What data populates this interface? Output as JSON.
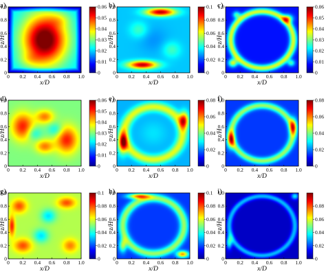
{
  "figure": {
    "colormap": [
      "#00008f",
      "#0000ff",
      "#0080ff",
      "#00ffff",
      "#80ff80",
      "#ffff00",
      "#ff8000",
      "#ff0000",
      "#800000"
    ]
  },
  "chart_data": [
    {
      "type": "heatmap",
      "panel": "a)",
      "xlabel": "x/D",
      "ylabel": "z/H",
      "xlim": [
        0,
        1
      ],
      "ylim": [
        0,
        1
      ],
      "x_ticks": [
        "0",
        "0.2",
        "0.4",
        "0.6",
        "0.8",
        "1.0"
      ],
      "y_ticks": [
        "0",
        "0.2",
        "0.4",
        "0.6",
        "0.8",
        "1.0"
      ],
      "colorbar": {
        "min": 0,
        "max": 0.06,
        "ticks": [
          "0",
          "0.01",
          "0.02",
          "0.03",
          "0.04",
          "0.05",
          "0.06"
        ]
      },
      "pattern": "center-high",
      "base_level": 0.35,
      "blobs": [
        [
          0.5,
          0.5,
          0.3,
          0.38,
          0.72
        ],
        [
          0.3,
          0.2,
          0.15,
          0.1,
          0.1
        ],
        [
          0.7,
          0.8,
          0.15,
          0.1,
          0.1
        ]
      ]
    },
    {
      "type": "heatmap",
      "panel": "b)",
      "xlabel": "x/D",
      "ylabel": "z/H",
      "xlim": [
        0,
        1
      ],
      "ylim": [
        0,
        1
      ],
      "x_ticks": [
        "0",
        "0.2",
        "0.4",
        "0.6",
        "0.8",
        "1.0"
      ],
      "y_ticks": [
        "0",
        "0.2",
        "0.4",
        "0.6",
        "0.8",
        "1.0"
      ],
      "colorbar": {
        "min": 0,
        "max": 0.1,
        "ticks": [
          "0",
          "0.02",
          "0.04",
          "0.06",
          "0.08",
          "0.1"
        ]
      },
      "pattern": "blobs",
      "base_level": 0.32,
      "blobs": [
        [
          0.6,
          0.92,
          0.2,
          0.06,
          0.62
        ],
        [
          0.35,
          0.12,
          0.2,
          0.06,
          0.62
        ],
        [
          0.3,
          0.65,
          0.12,
          0.12,
          0.12
        ],
        [
          0.75,
          0.35,
          0.12,
          0.12,
          0.12
        ],
        [
          0.5,
          0.5,
          0.2,
          0.2,
          -0.05
        ]
      ]
    },
    {
      "type": "heatmap",
      "panel": "c)",
      "xlabel": "x/D",
      "ylabel": "z/H",
      "xlim": [
        0,
        1
      ],
      "ylim": [
        0,
        1
      ],
      "x_ticks": [
        "0",
        "0.2",
        "0.4",
        "0.6",
        "0.8",
        "1.0"
      ],
      "y_ticks": [
        "0",
        "0.2",
        "0.4",
        "0.6",
        "0.8",
        "1.0"
      ],
      "colorbar": {
        "min": 0,
        "max": 0.06,
        "ticks": [
          "0",
          "0.01",
          "0.02",
          "0.03",
          "0.04",
          "0.05",
          "0.06"
        ]
      },
      "pattern": "ring",
      "base_level": 0.14,
      "ring": {
        "radius": 0.43,
        "width": 0.05,
        "amp": 0.45
      },
      "blobs": [
        [
          0.1,
          0.15,
          0.06,
          0.06,
          0.45
        ],
        [
          0.85,
          0.82,
          0.07,
          0.06,
          0.45
        ],
        [
          0.15,
          0.88,
          0.05,
          0.05,
          0.3
        ],
        [
          0.9,
          0.15,
          0.05,
          0.05,
          0.3
        ]
      ]
    },
    {
      "type": "heatmap",
      "panel": "d)",
      "xlabel": "x/D",
      "ylabel": "z/H",
      "xlim": [
        0,
        1
      ],
      "ylim": [
        0,
        1
      ],
      "x_ticks": [
        "0",
        "0.2",
        "0.4",
        "0.6",
        "0.8",
        "1.0"
      ],
      "y_ticks": [
        "0",
        "0.2",
        "0.4",
        "0.6",
        "0.8",
        "1.0"
      ],
      "colorbar": {
        "min": 0,
        "max": 0.06,
        "ticks": [
          "0",
          "0.01",
          "0.02",
          "0.03",
          "0.04",
          "0.05",
          "0.06"
        ]
      },
      "pattern": "blobs",
      "base_level": 0.5,
      "blobs": [
        [
          0.2,
          0.6,
          0.15,
          0.2,
          0.35
        ],
        [
          0.8,
          0.4,
          0.15,
          0.2,
          0.35
        ],
        [
          0.5,
          0.3,
          0.12,
          0.1,
          0.25
        ],
        [
          0.5,
          0.75,
          0.12,
          0.1,
          0.25
        ],
        [
          0.35,
          0.5,
          0.1,
          0.1,
          -0.15
        ],
        [
          0.65,
          0.55,
          0.1,
          0.1,
          -0.15
        ]
      ]
    },
    {
      "type": "heatmap",
      "panel": "e)",
      "xlabel": "x/D",
      "ylabel": "z/H",
      "xlim": [
        0,
        1
      ],
      "ylim": [
        0,
        1
      ],
      "x_ticks": [
        "0",
        "0.2",
        "0.4",
        "0.6",
        "0.8",
        "1.0"
      ],
      "y_ticks": [
        "0",
        "0.2",
        "0.4",
        "0.6",
        "0.8",
        "1.0"
      ],
      "colorbar": {
        "min": 0,
        "max": 0.08,
        "ticks": [
          "0",
          "0.02",
          "0.04",
          "0.06",
          "0.08"
        ]
      },
      "pattern": "ring",
      "base_level": 0.3,
      "ring": {
        "radius": 0.4,
        "width": 0.07,
        "amp": 0.3
      },
      "blobs": [
        [
          0.08,
          0.35,
          0.06,
          0.15,
          0.55
        ],
        [
          0.92,
          0.7,
          0.06,
          0.12,
          0.5
        ],
        [
          0.5,
          0.5,
          0.18,
          0.18,
          0.05
        ]
      ]
    },
    {
      "type": "heatmap",
      "panel": "f)",
      "xlabel": "x/D",
      "ylabel": "z/H",
      "xlim": [
        0,
        1
      ],
      "ylim": [
        0,
        1
      ],
      "x_ticks": [
        "0",
        "0.2",
        "0.4",
        "0.6",
        "0.8",
        "1.0"
      ],
      "y_ticks": [
        "0",
        "0.2",
        "0.4",
        "0.6",
        "0.8",
        "1.0"
      ],
      "colorbar": {
        "min": 0,
        "max": 0.08,
        "ticks": [
          "0",
          "0.02",
          "0.04",
          "0.06",
          "0.08"
        ]
      },
      "pattern": "ring",
      "base_level": 0.18,
      "ring": {
        "radius": 0.42,
        "width": 0.05,
        "amp": 0.35
      },
      "blobs": [
        [
          0.07,
          0.4,
          0.05,
          0.12,
          0.5
        ],
        [
          0.93,
          0.6,
          0.05,
          0.12,
          0.45
        ]
      ]
    },
    {
      "type": "heatmap",
      "panel": "g)",
      "xlabel": "x/D",
      "ylabel": "z/H",
      "xlim": [
        0,
        1
      ],
      "ylim": [
        0,
        1
      ],
      "x_ticks": [
        "0",
        "0.2",
        "0.4",
        "0.6",
        "0.8",
        "1.0"
      ],
      "y_ticks": [
        "0",
        "0.2",
        "0.4",
        "0.6",
        "0.8",
        "1.0"
      ],
      "colorbar": {
        "min": 0,
        "max": 0.1,
        "ticks": [
          "0",
          "0.02",
          "0.04",
          "0.06",
          "0.08",
          "0.1"
        ]
      },
      "pattern": "blobs",
      "base_level": 0.55,
      "blobs": [
        [
          0.15,
          0.8,
          0.1,
          0.1,
          0.25
        ],
        [
          0.8,
          0.85,
          0.12,
          0.08,
          0.25
        ],
        [
          0.2,
          0.2,
          0.12,
          0.1,
          0.25
        ],
        [
          0.85,
          0.2,
          0.1,
          0.1,
          0.2
        ],
        [
          0.45,
          0.35,
          0.1,
          0.1,
          -0.2
        ],
        [
          0.55,
          0.65,
          0.1,
          0.1,
          -0.2
        ],
        [
          0.05,
          0.5,
          0.04,
          0.15,
          0.3
        ]
      ]
    },
    {
      "type": "heatmap",
      "panel": "h)",
      "xlabel": "x/D",
      "ylabel": "z/H",
      "xlim": [
        0,
        1
      ],
      "ylim": [
        0,
        1
      ],
      "x_ticks": [
        "0",
        "0.2",
        "0.4",
        "0.6",
        "0.8",
        "1.0"
      ],
      "y_ticks": [
        "0",
        "0.2",
        "0.4",
        "0.6",
        "0.8",
        "1.0"
      ],
      "colorbar": {
        "min": 0,
        "max": 0.1,
        "ticks": [
          "0",
          "0.02",
          "0.04",
          "0.06",
          "0.08",
          "0.1"
        ]
      },
      "pattern": "ring",
      "base_level": 0.18,
      "ring": {
        "radius": 0.42,
        "width": 0.06,
        "amp": 0.35
      },
      "blobs": [
        [
          0.3,
          0.95,
          0.15,
          0.04,
          0.55
        ],
        [
          0.9,
          0.07,
          0.08,
          0.05,
          0.55
        ],
        [
          0.08,
          0.2,
          0.05,
          0.1,
          0.35
        ]
      ]
    },
    {
      "type": "heatmap",
      "panel": "i)",
      "xlabel": "x/D",
      "ylabel": "z/H",
      "xlim": [
        0,
        1
      ],
      "ylim": [
        0,
        1
      ],
      "x_ticks": [
        "0",
        "0.2",
        "0.4",
        "0.6",
        "0.8",
        "1.0"
      ],
      "y_ticks": [
        "0",
        "0.2",
        "0.4",
        "0.6",
        "0.8",
        "1.0"
      ],
      "colorbar": {
        "min": 0,
        "max": 0.1,
        "ticks": [
          "0",
          "0.02",
          "0.04",
          "0.06",
          "0.08"
        ]
      },
      "pattern": "ring",
      "base_level": 0.06,
      "ring": {
        "radius": 0.45,
        "width": 0.04,
        "amp": 0.25
      },
      "blobs": [
        [
          0.05,
          0.25,
          0.04,
          0.1,
          0.35
        ],
        [
          0.95,
          0.95,
          0.05,
          0.05,
          0.3
        ]
      ]
    }
  ]
}
